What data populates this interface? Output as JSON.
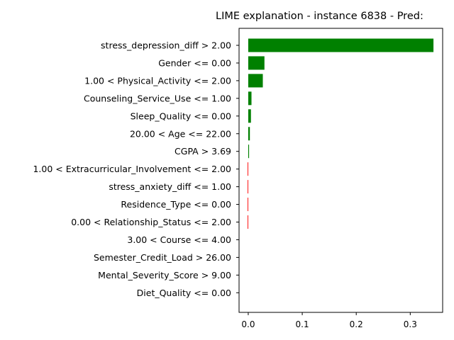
{
  "chart_data": {
    "type": "bar",
    "orientation": "horizontal",
    "title": "LIME explanation - instance 6838 - Pred:",
    "xlabel": "",
    "ylabel": "",
    "xlim": [
      -0.017,
      0.36
    ],
    "xticks": [
      "0.0",
      "0.1",
      "0.2",
      "0.3"
    ],
    "xtick_values": [
      0.0,
      0.1,
      0.2,
      0.3
    ],
    "grid": false,
    "categories": [
      "stress_depression_diff > 2.00",
      "Gender <= 0.00",
      "1.00 < Physical_Activity <= 2.00",
      "Counseling_Service_Use <= 1.00",
      "Sleep_Quality <= 0.00",
      "20.00 < Age <= 22.00",
      "CGPA > 3.69",
      "1.00 < Extracurricular_Involvement <= 2.00",
      "stress_anxiety_diff <= 1.00",
      "Residence_Type <= 0.00",
      "0.00 < Relationship_Status <= 2.00",
      "3.00 < Course <= 4.00",
      "Semester_Credit_Load > 26.00",
      "Mental_Severity_Score > 9.00",
      "Diet_Quality <= 0.00"
    ],
    "values": [
      0.343,
      0.03,
      0.027,
      0.006,
      0.005,
      0.003,
      0.0015,
      -0.0012,
      -0.0012,
      -0.0012,
      -0.0012,
      0.0,
      0.0,
      0.0,
      0.0
    ],
    "colors": {
      "positive": "#008000",
      "negative": "#ff0000"
    }
  }
}
